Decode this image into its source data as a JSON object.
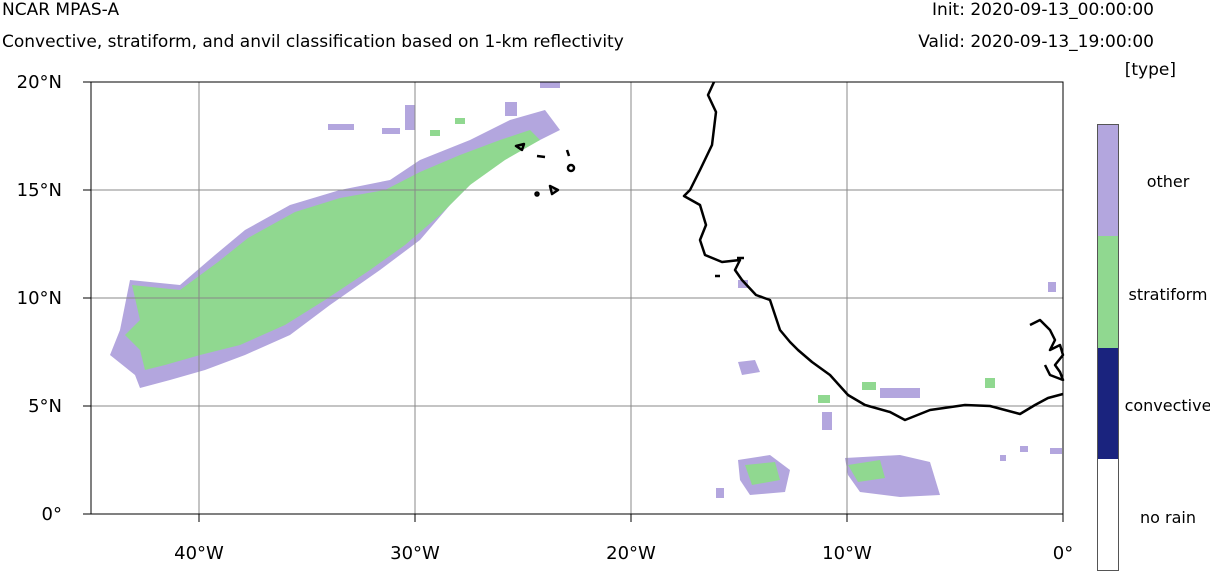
{
  "header": {
    "title": "NCAR MPAS-A",
    "subtitle": "Convective, stratiform, and anvil classification based on 1-km reflectivity",
    "init": "Init: 2020-09-13_00:00:00",
    "valid": "Valid: 2020-09-13_19:00:00",
    "units": "[type]"
  },
  "axes": {
    "lat_labels": [
      "20°N",
      "15°N",
      "10°N",
      "5°N",
      "0°"
    ],
    "lon_labels": [
      "40°W",
      "30°W",
      "20°W",
      "10°W",
      "0°"
    ],
    "lat_range": [
      0,
      20
    ],
    "lon_range": [
      -45,
      0
    ]
  },
  "legend": {
    "items": [
      {
        "label": "other",
        "color": "#b3a6de"
      },
      {
        "label": "stratiform",
        "color": "#90d890"
      },
      {
        "label": "convective",
        "color": "#1a237e"
      },
      {
        "label": "no rain",
        "color": "#ffffff"
      }
    ]
  },
  "colors": {
    "other": "#b3a6de",
    "stratiform": "#90d890",
    "coastline": "#000000",
    "grid": "#888888"
  }
}
